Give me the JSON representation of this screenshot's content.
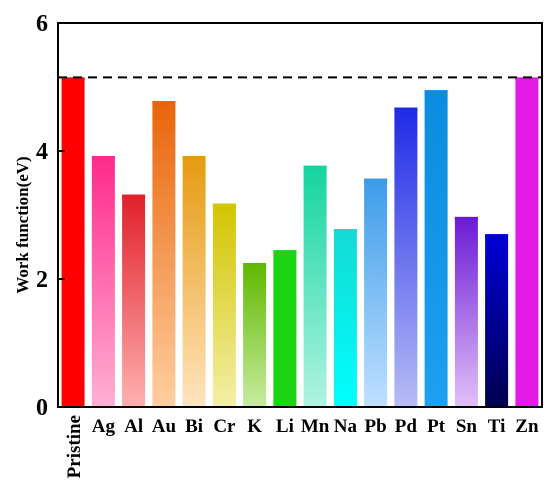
{
  "chart_data": {
    "type": "bar",
    "title": "",
    "xlabel": "",
    "ylabel": "Work function(eV)",
    "ylim": [
      0,
      6
    ],
    "yticks": [
      0,
      2,
      4,
      6
    ],
    "grid": false,
    "legend": "none",
    "reference_line": {
      "value": 5.15,
      "style": "dashed",
      "color": "#000000"
    },
    "categories": [
      "Pristine",
      "Ag",
      "Al",
      "Au",
      "Bi",
      "Cr",
      "K",
      "Li",
      "Mn",
      "Na",
      "Pb",
      "Pd",
      "Pt",
      "Sn",
      "Ti",
      "Zn"
    ],
    "values": [
      5.15,
      3.92,
      3.32,
      4.78,
      3.92,
      3.18,
      2.25,
      2.45,
      3.77,
      2.78,
      3.57,
      4.68,
      4.95,
      2.97,
      2.7,
      5.15
    ],
    "bar_colors": [
      [
        "#ff0000",
        "#ff0000"
      ],
      [
        "#ff2a8c",
        "#ffb0d4"
      ],
      [
        "#e0202a",
        "#ffb0b0"
      ],
      [
        "#e8640a",
        "#ffcfa0"
      ],
      [
        "#e69a10",
        "#ffe4c0"
      ],
      [
        "#d2c400",
        "#f4efa8"
      ],
      [
        "#5fb800",
        "#c8eca0"
      ],
      [
        "#1dd414",
        "#1dd414"
      ],
      [
        "#14d4a0",
        "#b0f4e0"
      ],
      [
        "#14dad4",
        "#00ffff"
      ],
      [
        "#3c9ce8",
        "#c0e0ff"
      ],
      [
        "#1e2ae6",
        "#b8bcf6"
      ],
      [
        "#0a8ce0",
        "#1ea0f0"
      ],
      [
        "#6a1ad4",
        "#e2c0f8"
      ],
      [
        "#0000d8",
        "#000050"
      ],
      [
        "#e41ae6",
        "#e41ae6"
      ]
    ]
  }
}
